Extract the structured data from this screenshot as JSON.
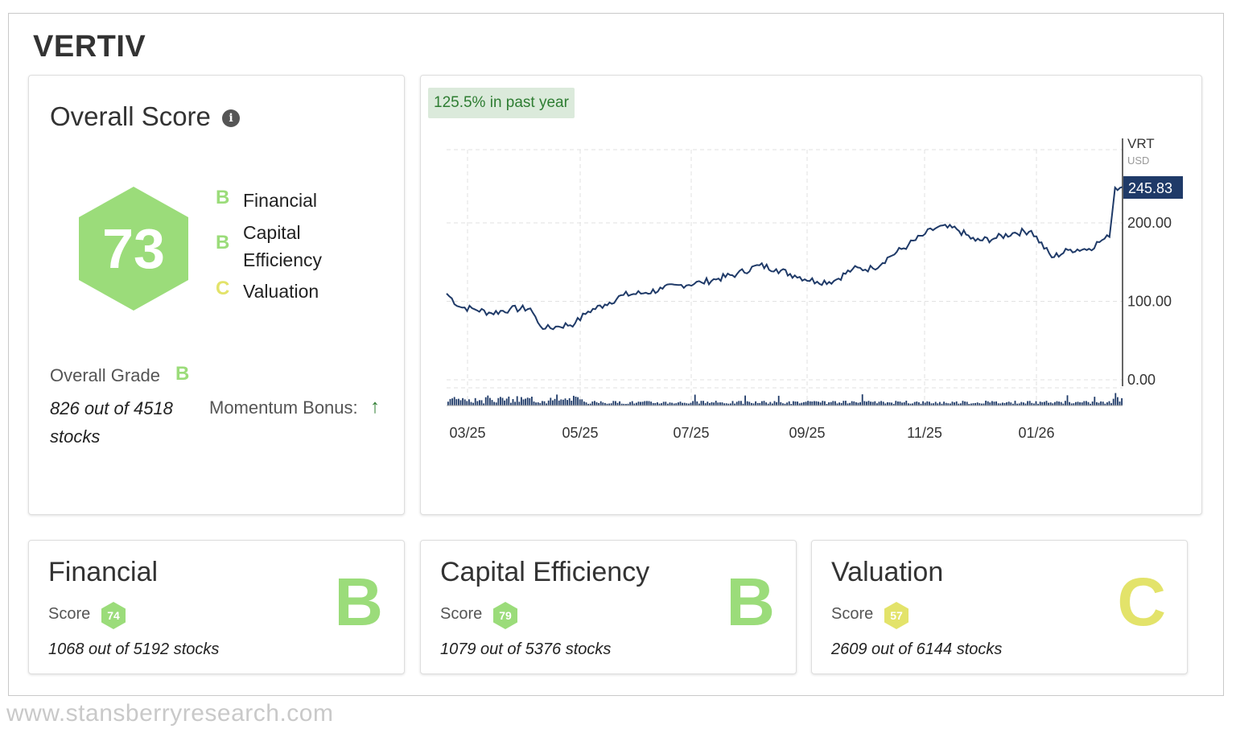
{
  "company": "VERTIV",
  "colors": {
    "green": "#9bdc7a",
    "yellow": "#e3e36a",
    "line": "#1f3a68",
    "up_arrow": "#2e7d32"
  },
  "overall": {
    "title": "Overall Score",
    "info_icon": "info-icon",
    "score": "73",
    "grades": [
      {
        "letter": "B",
        "label": "Financial",
        "color": "green"
      },
      {
        "letter": "B",
        "label": "Capital Efficiency",
        "color": "green"
      },
      {
        "letter": "C",
        "label": "Valuation",
        "color": "yellow"
      }
    ],
    "overall_grade_label": "Overall Grade",
    "overall_grade": "B",
    "rank_text": "826 out of 4518 stocks",
    "momentum_label": "Momentum Bonus:",
    "momentum_icon": "arrow-up-icon"
  },
  "chart": {
    "perf_badge": "125.5% in past year",
    "ticker": "VRT",
    "currency": "USD",
    "last_price": "245.83"
  },
  "chart_data": {
    "type": "line",
    "x_tick_labels": [
      "03/25",
      "05/25",
      "07/25",
      "09/25",
      "11/25",
      "01/26"
    ],
    "y_tick_labels": [
      "0.00",
      "100.00",
      "200.00"
    ],
    "ylim": [
      0,
      250
    ],
    "grid": true,
    "series": [
      {
        "name": "VRT",
        "x": [
          "2025-02-14",
          "2025-02-21",
          "2025-03-01",
          "2025-03-10",
          "2025-03-20",
          "2025-03-31",
          "2025-04-04",
          "2025-04-08",
          "2025-04-15",
          "2025-04-24",
          "2025-05-01",
          "2025-05-10",
          "2025-05-20",
          "2025-06-01",
          "2025-06-10",
          "2025-06-20",
          "2025-07-01",
          "2025-07-10",
          "2025-07-20",
          "2025-08-01",
          "2025-08-10",
          "2025-08-20",
          "2025-09-01",
          "2025-09-10",
          "2025-09-20",
          "2025-10-01",
          "2025-10-10",
          "2025-10-20",
          "2025-10-29",
          "2025-11-05",
          "2025-11-15",
          "2025-11-25",
          "2025-12-05",
          "2025-12-15",
          "2025-12-25",
          "2026-01-05",
          "2026-01-15",
          "2026-01-25",
          "2026-02-01",
          "2026-02-05",
          "2026-02-08",
          "2026-02-12"
        ],
        "values": [
          110,
          93,
          90,
          85,
          90,
          91,
          73,
          65,
          68,
          72,
          87,
          96,
          108,
          111,
          116,
          121,
          124,
          129,
          135,
          146,
          141,
          133,
          125,
          126,
          141,
          142,
          157,
          172,
          186,
          195,
          192,
          177,
          180,
          187,
          190,
          156,
          166,
          167,
          178,
          182,
          245,
          245.83
        ]
      }
    ],
    "volume_note": "daily volume bars shown beneath price line"
  },
  "cards": [
    {
      "title": "Financial",
      "score_label": "Score",
      "score": "74",
      "rank": "1068 out of 5192 stocks",
      "grade": "B",
      "color": "green"
    },
    {
      "title": "Capital Efficiency",
      "score_label": "Score",
      "score": "79",
      "rank": "1079 out of 5376 stocks",
      "grade": "B",
      "color": "green"
    },
    {
      "title": "Valuation",
      "score_label": "Score",
      "score": "57",
      "rank": "2609 out of 6144 stocks",
      "grade": "C",
      "color": "yellow"
    }
  ],
  "watermark": "www.stansberryresearch.com"
}
